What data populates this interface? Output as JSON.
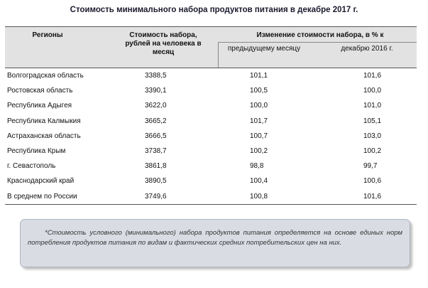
{
  "title": "Стоимость минимального набора продуктов питания в декабре 2017 г.",
  "table": {
    "headers": {
      "region": "Регионы",
      "cost": "Стоимость набора, рублей на человека в месяц",
      "change": "Изменение стоимости набора, в % к",
      "prev_month": "предыдущему месяцу",
      "dec_2016": "декабрю 2016 г."
    },
    "rows": [
      {
        "region": "Волгоградская область",
        "cost": "3388,5",
        "prev": "101,1",
        "dec": "101,6"
      },
      {
        "region": "Ростовская область",
        "cost": "3390,1",
        "prev": "100,5",
        "dec": "100,0"
      },
      {
        "region": "Республика Адыгея",
        "cost": "3622,0",
        "prev": "100,0",
        "dec": "101,0"
      },
      {
        "region": "Республика Калмыкия",
        "cost": "3665,2",
        "prev": "101,7",
        "dec": "105,1"
      },
      {
        "region": "Астраханская область",
        "cost": "3666,5",
        "prev": "100,7",
        "dec": "103,0"
      },
      {
        "region": "Республика Крым",
        "cost": "3738,7",
        "prev": "100,2",
        "dec": "100,2"
      },
      {
        "region": "г. Севастополь",
        "cost": "3861,8",
        "prev": "98,8",
        "dec": "99,7"
      },
      {
        "region": "Краснодарский край",
        "cost": "3890,5",
        "prev": "100,4",
        "dec": "100,6"
      },
      {
        "region": "В среднем по России",
        "cost": "3749,6",
        "prev": "100,8",
        "dec": "101,6"
      }
    ]
  },
  "note": "*Стоимость условного (минимального) набора продуктов питания определяется на основе единых норм потребления продуктов питания по видам и фактических средних потребительских цен на них."
}
